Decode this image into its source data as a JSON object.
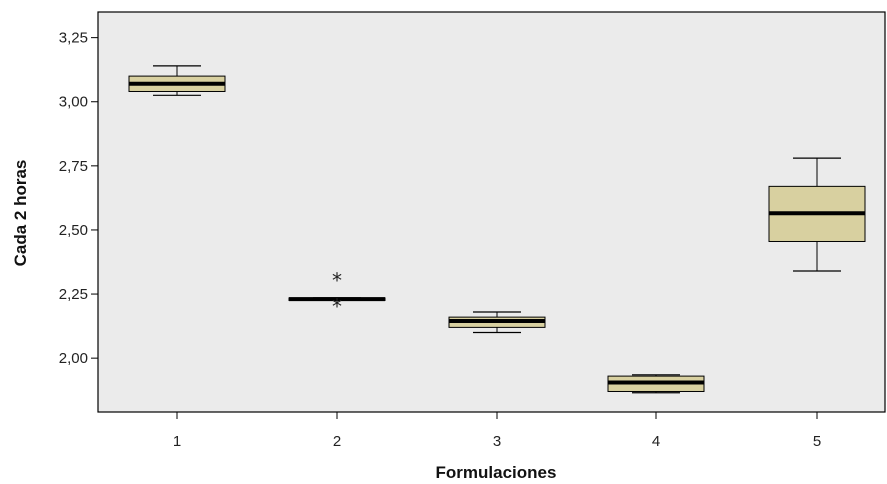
{
  "chart_data": {
    "type": "boxplot",
    "title": "",
    "xlabel": "Formulaciones",
    "ylabel": "Cada 2 horas",
    "ylim": [
      1.79,
      3.35
    ],
    "yticks": [
      2.0,
      2.25,
      2.5,
      2.75,
      3.0,
      3.25
    ],
    "ytick_labels": [
      "2,00",
      "2,25",
      "2,50",
      "2,75",
      "3,00",
      "3,25"
    ],
    "categories": [
      "1",
      "2",
      "3",
      "4",
      "5"
    ],
    "boxes": [
      {
        "category": "1",
        "whisker_low": 3.025,
        "q1": 3.04,
        "median": 3.07,
        "q3": 3.1,
        "whisker_high": 3.14,
        "outliers": []
      },
      {
        "category": "2",
        "whisker_low": 2.225,
        "q1": 2.225,
        "median": 2.23,
        "q3": 2.235,
        "whisker_high": 2.235,
        "outliers": [
          2.31,
          2.21
        ]
      },
      {
        "category": "3",
        "whisker_low": 2.1,
        "q1": 2.12,
        "median": 2.145,
        "q3": 2.16,
        "whisker_high": 2.18,
        "outliers": []
      },
      {
        "category": "4",
        "whisker_low": 1.865,
        "q1": 1.87,
        "median": 1.905,
        "q3": 1.93,
        "whisker_high": 1.935,
        "outliers": []
      },
      {
        "category": "5",
        "whisker_low": 2.34,
        "q1": 2.455,
        "median": 2.565,
        "q3": 2.67,
        "whisker_high": 2.78,
        "outliers": []
      }
    ],
    "outlier_marker": "*",
    "grid": false,
    "colors": {
      "plot_background": "#ebebeb",
      "box_fill": "#d8d0a0",
      "box_stroke": "#000000",
      "median": "#000000",
      "axis": "#000000"
    }
  }
}
